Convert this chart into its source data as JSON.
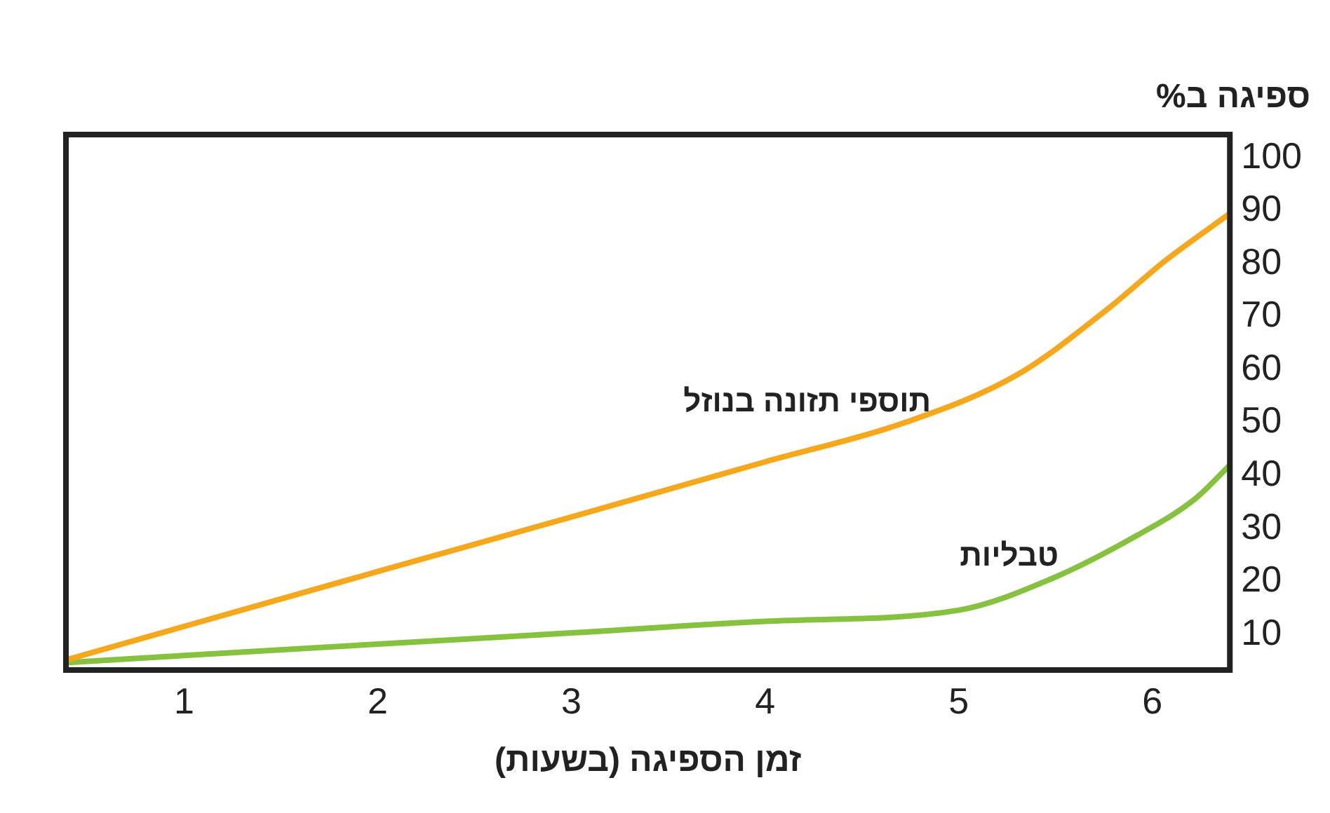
{
  "chart_data": {
    "type": "line",
    "xlabel": "זמן הספיגה (בשעות)",
    "ylabel": "ספיגה ב%",
    "xlim": [
      0.39,
      6.4
    ],
    "xticks": [
      1,
      2,
      3,
      4,
      5,
      6
    ],
    "ylim": [
      3.3,
      104.4
    ],
    "yticks": [
      10,
      20,
      30,
      40,
      50,
      60,
      70,
      80,
      90,
      100
    ],
    "grid": false,
    "legend": false,
    "marker": "none",
    "line_style": "solid",
    "series": [
      {
        "name": "תוספי תזונה בנוזל",
        "color": "#f6a81c",
        "x": [
          0.39,
          2,
          3,
          4,
          4.72,
          5.3,
          5.77,
          6.07,
          6.4
        ],
        "values": [
          5.2,
          21.9,
          32.2,
          42.6,
          50,
          59,
          71.5,
          80.7,
          89.5
        ]
      },
      {
        "name": "טבליות",
        "color": "#86c23f",
        "x": [
          0.39,
          2,
          3,
          4,
          5,
          5.47,
          5.92,
          6.22,
          6.4
        ],
        "values": [
          4.7,
          8.2,
          10.3,
          12.5,
          14.6,
          20.4,
          28.7,
          35.6,
          42
        ]
      }
    ]
  }
}
